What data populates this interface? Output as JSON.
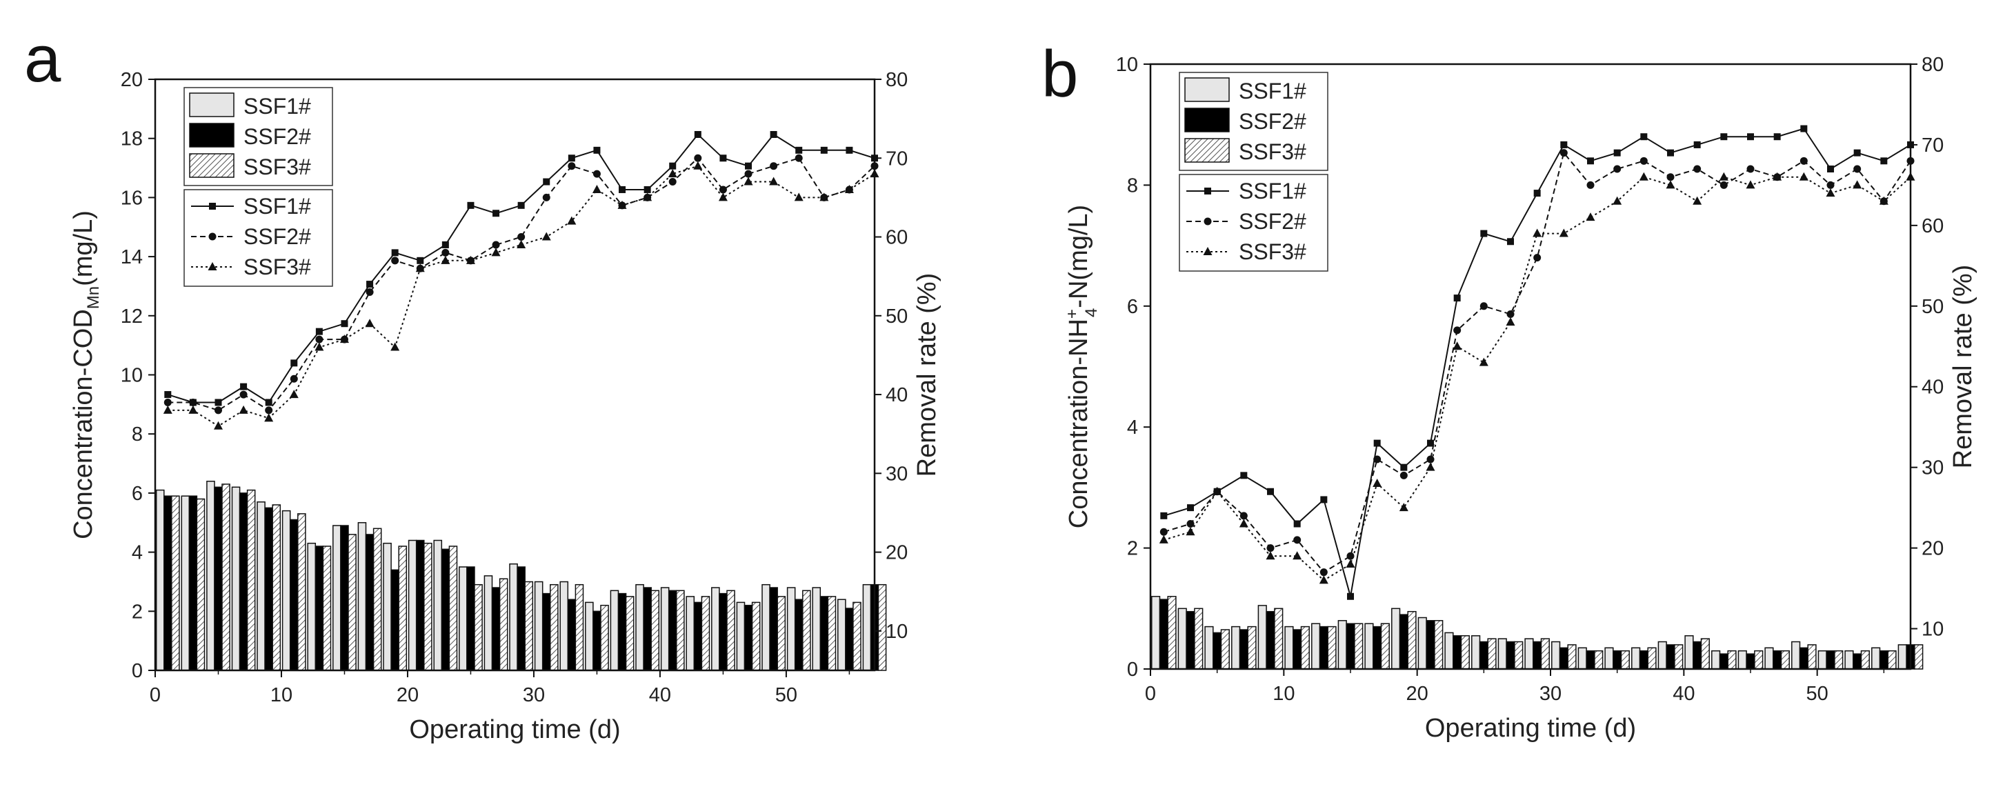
{
  "chart_data": [
    {
      "type": "bar+line",
      "panel_label": "a",
      "xlabel": "Operating time (d)",
      "ylabel_left": "Concentration-COD",
      "ylabel_left_sub": "Mn",
      "ylabel_left_unit": "(mg/L)",
      "ylabel_right": "Removal rate (%)",
      "xlim": [
        0,
        57
      ],
      "xticks": [
        "0",
        "10",
        "20",
        "30",
        "40",
        "50"
      ],
      "ylim_left": [
        0,
        20
      ],
      "yticks_left": [
        "0",
        "2",
        "4",
        "6",
        "8",
        "10",
        "12",
        "14",
        "16",
        "18",
        "20"
      ],
      "ylim_right": [
        5,
        80
      ],
      "yticks_right": [
        "10",
        "20",
        "30",
        "40",
        "50",
        "60",
        "70",
        "80"
      ],
      "legend": {
        "bars": [
          "SSF1#",
          "SSF2#",
          "SSF3#"
        ],
        "lines": [
          "SSF1#",
          "SSF2#",
          "SSF3#"
        ],
        "placement": "top-left"
      },
      "x": [
        1,
        3,
        5,
        7,
        9,
        11,
        13,
        15,
        17,
        19,
        21,
        23,
        25,
        27,
        29,
        31,
        33,
        35,
        37,
        39,
        41,
        43,
        45,
        47,
        49,
        51,
        53,
        55,
        57
      ],
      "bar_series": [
        {
          "name": "SSF1#",
          "values": [
            6.1,
            5.9,
            6.4,
            6.2,
            5.7,
            5.4,
            4.3,
            4.9,
            5.0,
            4.3,
            4.4,
            4.4,
            3.5,
            3.2,
            3.6,
            3.0,
            3.0,
            2.3,
            2.7,
            2.9,
            2.8,
            2.5,
            2.8,
            2.3,
            2.9,
            2.8,
            2.8,
            2.4,
            2.9
          ]
        },
        {
          "name": "SSF2#",
          "values": [
            5.9,
            5.9,
            6.2,
            6.0,
            5.5,
            5.1,
            4.2,
            4.9,
            4.6,
            3.4,
            4.4,
            4.1,
            3.5,
            2.8,
            3.5,
            2.6,
            2.4,
            2.0,
            2.6,
            2.8,
            2.7,
            2.3,
            2.6,
            2.2,
            2.8,
            2.4,
            2.5,
            2.1,
            2.9
          ]
        },
        {
          "name": "SSF3#",
          "values": [
            5.9,
            5.8,
            6.3,
            6.1,
            5.6,
            5.3,
            4.2,
            4.6,
            4.8,
            4.2,
            4.3,
            4.2,
            2.9,
            3.1,
            3.0,
            2.9,
            2.9,
            2.2,
            2.5,
            2.7,
            2.7,
            2.5,
            2.7,
            2.3,
            2.5,
            2.7,
            2.5,
            2.3,
            2.9
          ]
        }
      ],
      "line_series": [
        {
          "name": "SSF1#",
          "x": [
            1,
            3,
            5,
            7,
            9,
            11,
            13,
            15,
            17,
            19,
            21,
            23,
            25,
            27,
            29,
            31,
            33,
            35,
            37,
            39,
            41,
            43,
            45,
            47,
            49,
            51,
            53,
            55,
            57
          ],
          "values": [
            40,
            39,
            39,
            41,
            39,
            44,
            48,
            49,
            54,
            58,
            57,
            59,
            64,
            63,
            64,
            67,
            70,
            71,
            66,
            66,
            69,
            73,
            70,
            69,
            73,
            71,
            71,
            71,
            70
          ]
        },
        {
          "name": "SSF2#",
          "x": [
            1,
            3,
            5,
            7,
            9,
            11,
            13,
            15,
            17,
            19,
            21,
            23,
            25,
            27,
            29,
            31,
            33,
            35,
            37,
            39,
            41,
            43,
            45,
            47,
            49,
            51,
            53,
            55,
            57
          ],
          "values": [
            39,
            39,
            38,
            40,
            38,
            42,
            47,
            47,
            53,
            57,
            56,
            58,
            57,
            59,
            60,
            65,
            69,
            68,
            64,
            65,
            67,
            70,
            66,
            68,
            69,
            70,
            65,
            66,
            69
          ]
        },
        {
          "name": "SSF3#",
          "x": [
            1,
            3,
            5,
            7,
            9,
            11,
            13,
            15,
            17,
            19,
            21,
            23,
            25,
            27,
            29,
            31,
            33,
            35,
            37,
            39,
            41,
            43,
            45,
            47,
            49,
            51,
            53,
            55,
            57
          ],
          "values": [
            38,
            38,
            36,
            38,
            37,
            40,
            46,
            47,
            49,
            46,
            56,
            57,
            57,
            58,
            59,
            60,
            62,
            66,
            64,
            65,
            68,
            69,
            65,
            67,
            67,
            65,
            65,
            66,
            68
          ]
        }
      ]
    },
    {
      "type": "bar+line",
      "panel_label": "b",
      "xlabel": "Operating time (d)",
      "ylabel_left": "Concentration-NH",
      "ylabel_left_sub": "4",
      "ylabel_left_sup": "+",
      "ylabel_left_unit": "-N(mg/L)",
      "ylabel_right": "Removal rate (%)",
      "xlim": [
        0,
        57
      ],
      "xticks": [
        "0",
        "10",
        "20",
        "30",
        "40",
        "50"
      ],
      "ylim_left": [
        0,
        10
      ],
      "yticks_left": [
        "0",
        "2",
        "4",
        "6",
        "8",
        "10"
      ],
      "ylim_right": [
        5,
        80
      ],
      "yticks_right": [
        "10",
        "20",
        "30",
        "40",
        "50",
        "60",
        "70",
        "80"
      ],
      "legend": {
        "bars": [
          "SSF1#",
          "SSF2#",
          "SSF3#"
        ],
        "lines": [
          "SSF1#",
          "SSF2#",
          "SSF3#"
        ],
        "placement": "top-left"
      },
      "x": [
        1,
        3,
        5,
        7,
        9,
        11,
        13,
        15,
        17,
        19,
        21,
        23,
        25,
        27,
        29,
        31,
        33,
        35,
        37,
        39,
        41,
        43,
        45,
        47,
        49,
        51,
        53,
        55,
        57
      ],
      "bar_series": [
        {
          "name": "SSF1#",
          "values": [
            1.2,
            1.0,
            0.7,
            0.7,
            1.05,
            0.7,
            0.75,
            0.8,
            0.75,
            1.0,
            0.85,
            0.6,
            0.55,
            0.5,
            0.5,
            0.45,
            0.35,
            0.35,
            0.35,
            0.45,
            0.55,
            0.3,
            0.3,
            0.35,
            0.45,
            0.3,
            0.3,
            0.35,
            0.4
          ]
        },
        {
          "name": "SSF2#",
          "values": [
            1.15,
            0.95,
            0.6,
            0.65,
            0.95,
            0.65,
            0.7,
            0.75,
            0.7,
            0.9,
            0.8,
            0.55,
            0.45,
            0.45,
            0.45,
            0.35,
            0.3,
            0.3,
            0.3,
            0.4,
            0.45,
            0.25,
            0.25,
            0.3,
            0.35,
            0.3,
            0.25,
            0.3,
            0.4
          ]
        },
        {
          "name": "SSF3#",
          "values": [
            1.2,
            1.0,
            0.65,
            0.7,
            1.0,
            0.7,
            0.7,
            0.75,
            0.75,
            0.95,
            0.8,
            0.55,
            0.5,
            0.45,
            0.5,
            0.4,
            0.3,
            0.3,
            0.35,
            0.4,
            0.5,
            0.3,
            0.3,
            0.3,
            0.4,
            0.3,
            0.3,
            0.3,
            0.4
          ]
        }
      ],
      "line_series": [
        {
          "name": "SSF1#",
          "x": [
            1,
            3,
            5,
            7,
            9,
            11,
            13,
            15,
            17,
            19,
            21,
            23,
            25,
            27,
            29,
            31,
            33,
            35,
            37,
            39,
            41,
            43,
            45,
            47,
            49,
            51,
            53,
            55,
            57
          ],
          "values": [
            24,
            25,
            27,
            29,
            27,
            23,
            26,
            14,
            33,
            30,
            33,
            51,
            59,
            58,
            64,
            70,
            68,
            69,
            71,
            69,
            70,
            71,
            71,
            71,
            72,
            67,
            69,
            68,
            70
          ]
        },
        {
          "name": "SSF2#",
          "x": [
            1,
            3,
            5,
            7,
            9,
            11,
            13,
            15,
            17,
            19,
            21,
            23,
            25,
            27,
            29,
            31,
            33,
            35,
            37,
            39,
            41,
            43,
            45,
            47,
            49,
            51,
            53,
            55,
            57
          ],
          "values": [
            22,
            23,
            27,
            24,
            20,
            21,
            17,
            19,
            31,
            29,
            31,
            47,
            50,
            49,
            56,
            69,
            65,
            67,
            68,
            66,
            67,
            65,
            67,
            66,
            68,
            65,
            67,
            63,
            68
          ]
        },
        {
          "name": "SSF3#",
          "x": [
            1,
            3,
            5,
            7,
            9,
            11,
            13,
            15,
            17,
            19,
            21,
            23,
            25,
            27,
            29,
            31,
            33,
            35,
            37,
            39,
            41,
            43,
            45,
            47,
            49,
            51,
            53,
            55,
            57
          ],
          "values": [
            21,
            22,
            27,
            23,
            19,
            19,
            16,
            18,
            28,
            25,
            30,
            45,
            43,
            48,
            59,
            59,
            61,
            63,
            66,
            65,
            63,
            66,
            65,
            66,
            66,
            64,
            65,
            63,
            66
          ]
        }
      ]
    }
  ]
}
